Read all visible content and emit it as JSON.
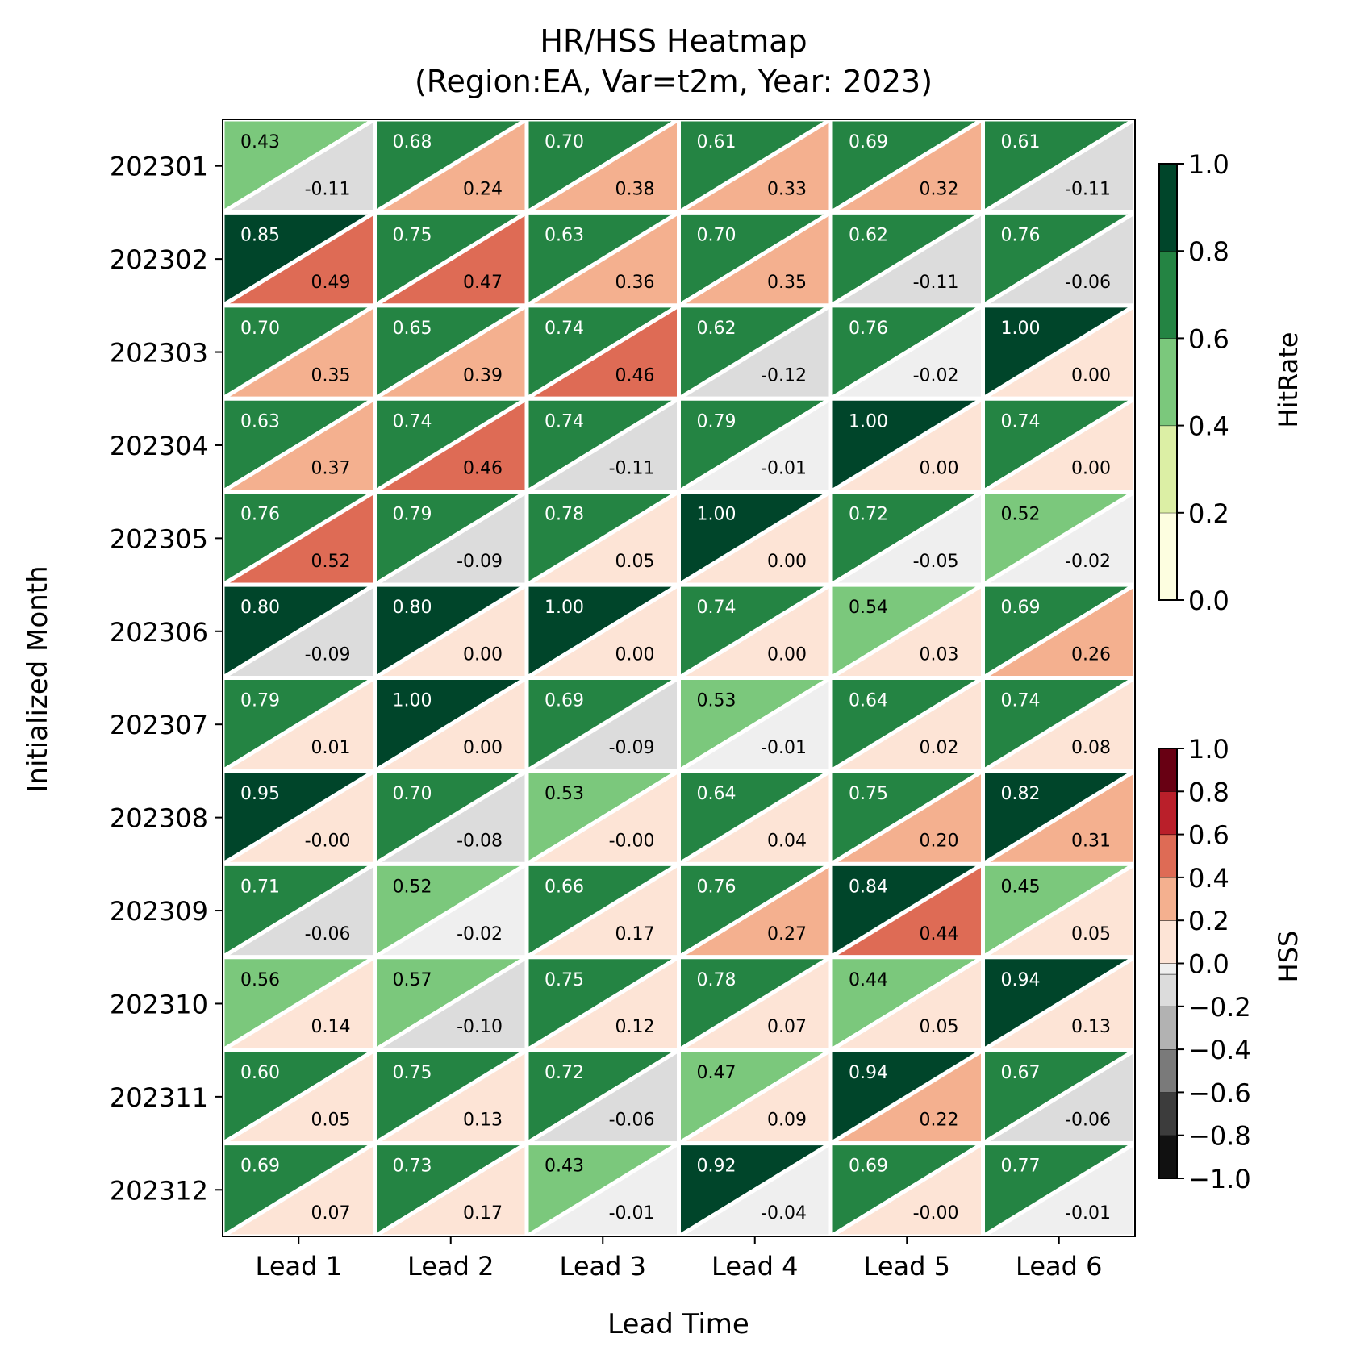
{
  "chart_data": {
    "type": "heatmap",
    "title": "HR/HSS Heatmap",
    "subtitle": "(Region:EA, Var=t2m, Year: 2023)",
    "xlabel": "Lead Time",
    "ylabel": "Initialized Month",
    "categories": [
      "Lead 1",
      "Lead 2",
      "Lead 3",
      "Lead 4",
      "Lead 5",
      "Lead 6"
    ],
    "rows": [
      "202301",
      "202302",
      "202303",
      "202304",
      "202305",
      "202306",
      "202307",
      "202308",
      "202309",
      "202310",
      "202311",
      "202312"
    ],
    "hitrate": [
      [
        0.43,
        0.68,
        0.7,
        0.61,
        0.69,
        0.61
      ],
      [
        0.85,
        0.75,
        0.63,
        0.7,
        0.62,
        0.76
      ],
      [
        0.7,
        0.65,
        0.74,
        0.62,
        0.76,
        1.0
      ],
      [
        0.63,
        0.74,
        0.74,
        0.79,
        1.0,
        0.74
      ],
      [
        0.76,
        0.79,
        0.78,
        1.0,
        0.72,
        0.52
      ],
      [
        0.8,
        0.8,
        1.0,
        0.74,
        0.54,
        0.69
      ],
      [
        0.79,
        1.0,
        0.69,
        0.53,
        0.64,
        0.74
      ],
      [
        0.95,
        0.7,
        0.53,
        0.64,
        0.75,
        0.82
      ],
      [
        0.71,
        0.52,
        0.66,
        0.76,
        0.84,
        0.45
      ],
      [
        0.56,
        0.57,
        0.75,
        0.78,
        0.44,
        0.94
      ],
      [
        0.6,
        0.75,
        0.72,
        0.47,
        0.94,
        0.67
      ],
      [
        0.69,
        0.73,
        0.43,
        0.92,
        0.69,
        0.77
      ]
    ],
    "hss": [
      [
        "-0.11",
        "0.24",
        "0.38",
        "0.33",
        "0.32",
        "-0.11"
      ],
      [
        "0.49",
        "0.47",
        "0.36",
        "0.35",
        "-0.11",
        "-0.06"
      ],
      [
        "0.35",
        "0.39",
        "0.46",
        "-0.12",
        "-0.02",
        "0.00"
      ],
      [
        "0.37",
        "0.46",
        "-0.11",
        "-0.01",
        "0.00",
        "0.00"
      ],
      [
        "0.52",
        "-0.09",
        "0.05",
        "0.00",
        "-0.05",
        "-0.02"
      ],
      [
        "-0.09",
        "0.00",
        "0.00",
        "0.00",
        "0.03",
        "0.26"
      ],
      [
        "0.01",
        "0.00",
        "-0.09",
        "-0.01",
        "0.02",
        "0.08"
      ],
      [
        "-0.00",
        "-0.08",
        "-0.00",
        "0.04",
        "0.20",
        "0.31"
      ],
      [
        "-0.06",
        "-0.02",
        "0.17",
        "0.27",
        "0.44",
        "0.05"
      ],
      [
        "0.14",
        "-0.10",
        "0.12",
        "0.07",
        "0.05",
        "0.13"
      ],
      [
        "0.05",
        "0.13",
        "-0.06",
        "0.09",
        "0.22",
        "-0.06"
      ],
      [
        "0.07",
        "0.17",
        "-0.01",
        "-0.04",
        "-0.00",
        "-0.01"
      ]
    ],
    "hitrate_colorbar": {
      "label": "HitRate",
      "ticks": [
        "0.0",
        "0.2",
        "0.4",
        "0.6",
        "0.8",
        "1.0"
      ],
      "range": [
        0,
        1
      ],
      "colors": [
        "#fdfee0",
        "#dcefa5",
        "#7bc87c",
        "#248443",
        "#00452a"
      ]
    },
    "hss_colorbar": {
      "label": "HSS",
      "ticks": [
        "−1.0",
        "−0.8",
        "−0.6",
        "−0.4",
        "−0.2",
        "0.0",
        "0.2",
        "0.4",
        "0.6",
        "0.8",
        "1.0"
      ],
      "range": [
        -1,
        1
      ],
      "colors": [
        "#111111",
        "#3c3c3c",
        "#7a7a7a",
        "#b2b2b2",
        "#dcdcdc",
        "#efefef",
        "#fde4d6",
        "#f4b08f",
        "#de6b55",
        "#ba1f2a",
        "#680013"
      ]
    }
  }
}
